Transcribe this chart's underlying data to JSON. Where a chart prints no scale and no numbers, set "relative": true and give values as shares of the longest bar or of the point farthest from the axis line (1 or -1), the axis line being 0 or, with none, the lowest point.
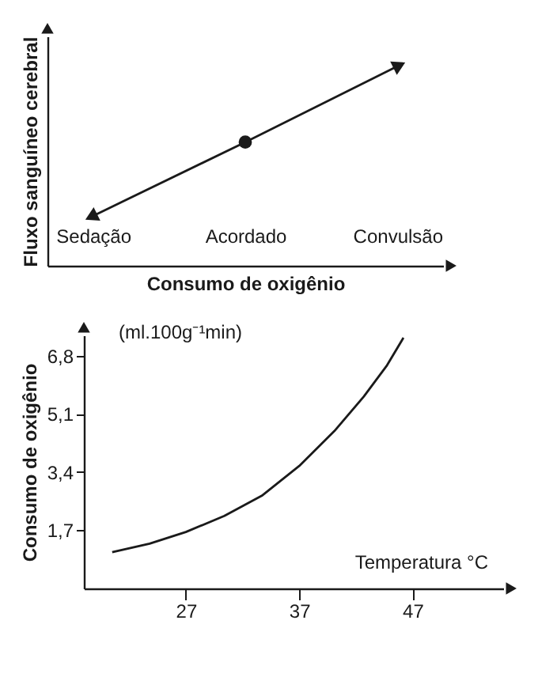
{
  "chart_data": [
    {
      "type": "line",
      "relative": true,
      "categories": [
        "Sedação",
        "Acordado",
        "Convulsão"
      ],
      "xlabel": "Consumo de oxigênio",
      "ylabel": "Fluxo sanguíneo cerebral",
      "grid": false,
      "series": [
        {
          "type": "line",
          "color": "#1a1a1a",
          "values": [
            0.25,
            0.62,
            1
          ]
        },
        {
          "type": "scatter",
          "color": "#1a1a1a",
          "marker": "circle",
          "values": [
            null,
            0.62,
            null
          ]
        }
      ]
    },
    {
      "type": "line",
      "xlabel": "Temperatura °C",
      "ylabel": "Consumo de oxigênio",
      "annotations": [
        "(ml.100g⁻¹min)"
      ],
      "xlim": [
        18,
        55
      ],
      "xticks": [
        27,
        37,
        47
      ],
      "ylim": [
        0,
        7.4
      ],
      "yticks": [
        {
          "value": 1.7,
          "label": "1,7"
        },
        {
          "value": 3.4,
          "label": "3,4"
        },
        {
          "value": 5.1,
          "label": "5,1"
        },
        {
          "value": 6.8,
          "label": "6,8"
        }
      ],
      "grid": false,
      "series": [
        {
          "color": "#1a1a1a",
          "x": [
            20.5,
            23.8,
            27,
            30.4,
            33.7,
            37,
            40.1,
            42.7,
            44.7,
            46.2
          ],
          "values": [
            1.06,
            1.31,
            1.65,
            2.12,
            2.71,
            3.58,
            4.6,
            5.61,
            6.5,
            7.33
          ]
        }
      ]
    }
  ]
}
